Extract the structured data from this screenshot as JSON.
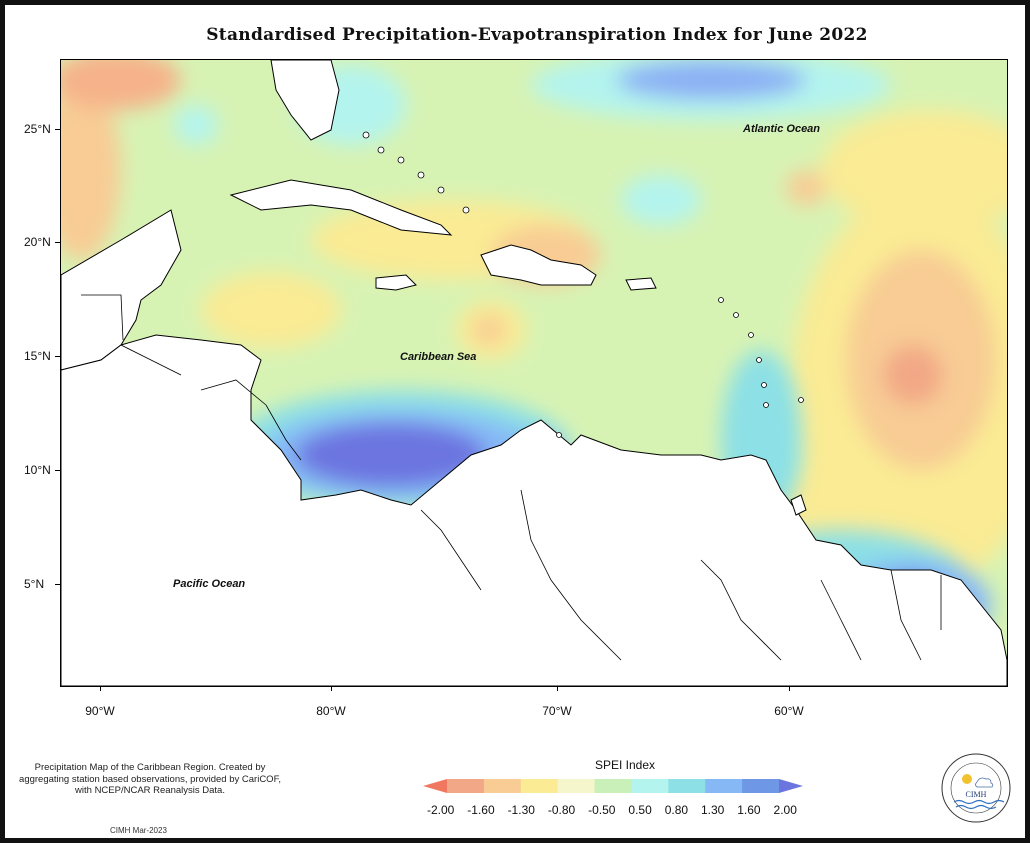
{
  "title": "Standardised Precipitation-Evapotranspiration Index for June 2022",
  "map": {
    "lat_labels": [
      "25°N",
      "20°N",
      "15°N",
      "10°N",
      "5°N"
    ],
    "lon_labels": [
      "90°W",
      "80°W",
      "70°W",
      "60°W"
    ],
    "ocean_labels": {
      "atlantic": "Atlantic Ocean",
      "caribbean": "Caribbean Sea",
      "pacific": "Pacific Ocean"
    }
  },
  "description": "Precipitation Map of the Caribbean Region. Created by aggregating station based observations, provided by CariCOF, with NCEP/NCAR Reanalysis Data.",
  "credit": "CIMH Mar-2023",
  "legend": {
    "title": "SPEI Index",
    "ticks": [
      "-2.00",
      "-1.60",
      "-1.30",
      "-0.80",
      "-0.50",
      "0.50",
      "0.80",
      "1.30",
      "1.60",
      "2.00"
    ],
    "colors": [
      "#f07860",
      "#f2a886",
      "#f8cc94",
      "#faeb94",
      "#f6f6cc",
      "#c9f0b8",
      "#b4f4ee",
      "#8ce0e6",
      "#86b8f6",
      "#6e98e6",
      "#6c74e0"
    ]
  },
  "logo": {
    "text": "CIMH",
    "name": "cimh-logo"
  }
}
